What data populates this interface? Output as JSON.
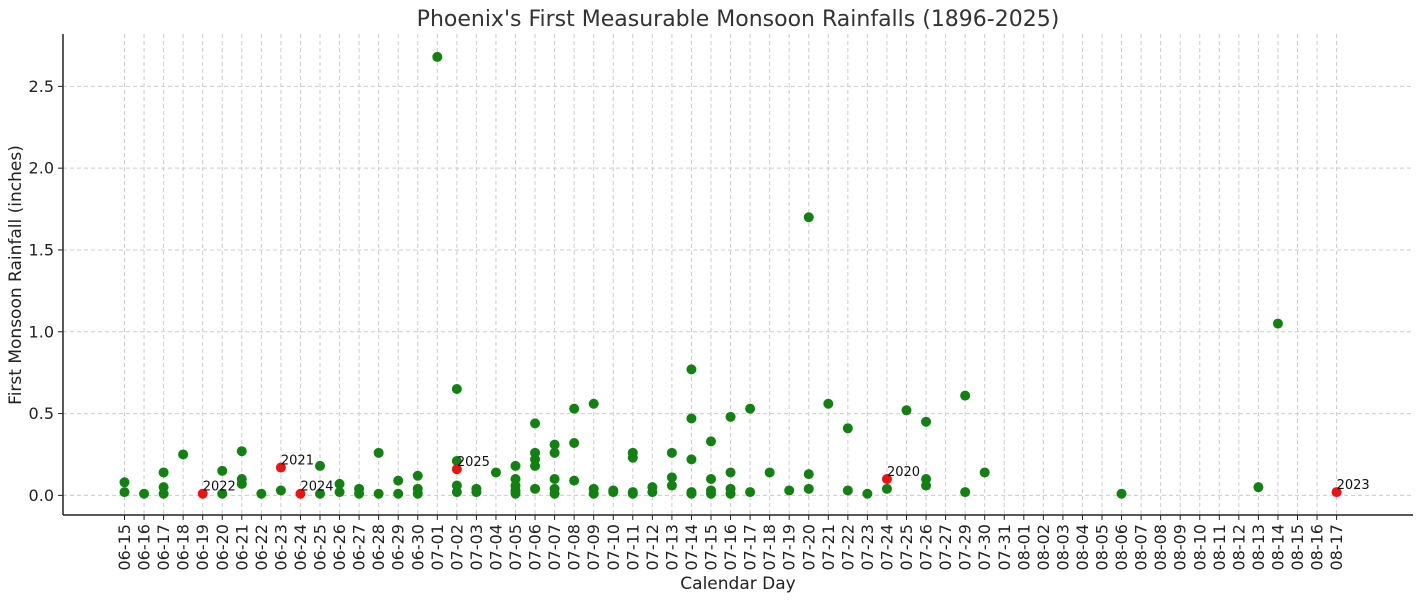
{
  "chart_data": {
    "type": "scatter",
    "title": "Phoenix's First Measurable Monsoon Rainfalls (1896-2025)",
    "xlabel": "Calendar Day",
    "ylabel": "First Monsoon Rainfall (inches)",
    "categories": [
      "06-15",
      "06-16",
      "06-17",
      "06-18",
      "06-19",
      "06-20",
      "06-21",
      "06-22",
      "06-23",
      "06-24",
      "06-25",
      "06-26",
      "06-27",
      "06-28",
      "06-29",
      "06-30",
      "07-01",
      "07-02",
      "07-03",
      "07-04",
      "07-05",
      "07-06",
      "07-07",
      "07-08",
      "07-09",
      "07-10",
      "07-11",
      "07-12",
      "07-13",
      "07-14",
      "07-15",
      "07-16",
      "07-17",
      "07-18",
      "07-19",
      "07-20",
      "07-21",
      "07-22",
      "07-23",
      "07-24",
      "07-25",
      "07-26",
      "07-27",
      "07-29",
      "07-30",
      "07-31",
      "08-01",
      "08-02",
      "08-03",
      "08-04",
      "08-05",
      "08-06",
      "08-07",
      "08-08",
      "08-09",
      "08-10",
      "08-11",
      "08-12",
      "08-13",
      "08-14",
      "08-15",
      "08-16",
      "08-17"
    ],
    "yticks": [
      "0.0",
      "0.5",
      "1.0",
      "1.5",
      "2.0",
      "2.5"
    ],
    "ylim": [
      -0.12,
      2.82
    ],
    "grid": true,
    "colors": {
      "points": "#118211",
      "highlight": "#ee1111",
      "grid": "#cccccc",
      "axis": "#222222"
    },
    "series": [
      {
        "points": [
          {
            "x": "06-15",
            "y": 0.08
          },
          {
            "x": "06-15",
            "y": 0.02
          },
          {
            "x": "06-16",
            "y": 0.01
          },
          {
            "x": "06-17",
            "y": 0.14
          },
          {
            "x": "06-17",
            "y": 0.05
          },
          {
            "x": "06-17",
            "y": 0.01
          },
          {
            "x": "06-18",
            "y": 0.25
          },
          {
            "x": "06-20",
            "y": 0.15
          },
          {
            "x": "06-20",
            "y": 0.01
          },
          {
            "x": "06-21",
            "y": 0.27
          },
          {
            "x": "06-21",
            "y": 0.1
          },
          {
            "x": "06-21",
            "y": 0.07
          },
          {
            "x": "06-22",
            "y": 0.01
          },
          {
            "x": "06-23",
            "y": 0.03
          },
          {
            "x": "06-25",
            "y": 0.18
          },
          {
            "x": "06-25",
            "y": 0.01
          },
          {
            "x": "06-26",
            "y": 0.07
          },
          {
            "x": "06-26",
            "y": 0.02
          },
          {
            "x": "06-27",
            "y": 0.04
          },
          {
            "x": "06-27",
            "y": 0.01
          },
          {
            "x": "06-28",
            "y": 0.26
          },
          {
            "x": "06-28",
            "y": 0.01
          },
          {
            "x": "06-29",
            "y": 0.09
          },
          {
            "x": "06-29",
            "y": 0.01
          },
          {
            "x": "06-30",
            "y": 0.12
          },
          {
            "x": "06-30",
            "y": 0.04
          },
          {
            "x": "06-30",
            "y": 0.01
          },
          {
            "x": "07-01",
            "y": 2.68
          },
          {
            "x": "07-02",
            "y": 0.65
          },
          {
            "x": "07-02",
            "y": 0.21
          },
          {
            "x": "07-02",
            "y": 0.06
          },
          {
            "x": "07-02",
            "y": 0.02
          },
          {
            "x": "07-03",
            "y": 0.04
          },
          {
            "x": "07-03",
            "y": 0.02
          },
          {
            "x": "07-04",
            "y": 0.14
          },
          {
            "x": "07-05",
            "y": 0.18
          },
          {
            "x": "07-05",
            "y": 0.1
          },
          {
            "x": "07-05",
            "y": 0.06
          },
          {
            "x": "07-05",
            "y": 0.03
          },
          {
            "x": "07-05",
            "y": 0.01
          },
          {
            "x": "07-06",
            "y": 0.44
          },
          {
            "x": "07-06",
            "y": 0.26
          },
          {
            "x": "07-06",
            "y": 0.22
          },
          {
            "x": "07-06",
            "y": 0.18
          },
          {
            "x": "07-06",
            "y": 0.04
          },
          {
            "x": "07-07",
            "y": 0.31
          },
          {
            "x": "07-07",
            "y": 0.26
          },
          {
            "x": "07-07",
            "y": 0.1
          },
          {
            "x": "07-07",
            "y": 0.04
          },
          {
            "x": "07-07",
            "y": 0.01
          },
          {
            "x": "07-08",
            "y": 0.53
          },
          {
            "x": "07-08",
            "y": 0.32
          },
          {
            "x": "07-08",
            "y": 0.09
          },
          {
            "x": "07-09",
            "y": 0.56
          },
          {
            "x": "07-09",
            "y": 0.04
          },
          {
            "x": "07-09",
            "y": 0.01
          },
          {
            "x": "07-10",
            "y": 0.03
          },
          {
            "x": "07-10",
            "y": 0.02
          },
          {
            "x": "07-11",
            "y": 0.26
          },
          {
            "x": "07-11",
            "y": 0.23
          },
          {
            "x": "07-11",
            "y": 0.02
          },
          {
            "x": "07-11",
            "y": 0.01
          },
          {
            "x": "07-12",
            "y": 0.05
          },
          {
            "x": "07-12",
            "y": 0.02
          },
          {
            "x": "07-13",
            "y": 0.26
          },
          {
            "x": "07-13",
            "y": 0.11
          },
          {
            "x": "07-13",
            "y": 0.06
          },
          {
            "x": "07-14",
            "y": 0.77
          },
          {
            "x": "07-14",
            "y": 0.47
          },
          {
            "x": "07-14",
            "y": 0.22
          },
          {
            "x": "07-14",
            "y": 0.02
          },
          {
            "x": "07-14",
            "y": 0.01
          },
          {
            "x": "07-15",
            "y": 0.33
          },
          {
            "x": "07-15",
            "y": 0.1
          },
          {
            "x": "07-15",
            "y": 0.03
          },
          {
            "x": "07-15",
            "y": 0.01
          },
          {
            "x": "07-16",
            "y": 0.48
          },
          {
            "x": "07-16",
            "y": 0.14
          },
          {
            "x": "07-16",
            "y": 0.04
          },
          {
            "x": "07-16",
            "y": 0.01
          },
          {
            "x": "07-17",
            "y": 0.53
          },
          {
            "x": "07-17",
            "y": 0.02
          },
          {
            "x": "07-18",
            "y": 0.14
          },
          {
            "x": "07-19",
            "y": 0.03
          },
          {
            "x": "07-20",
            "y": 1.7
          },
          {
            "x": "07-20",
            "y": 0.13
          },
          {
            "x": "07-20",
            "y": 0.04
          },
          {
            "x": "07-21",
            "y": 0.56
          },
          {
            "x": "07-22",
            "y": 0.41
          },
          {
            "x": "07-22",
            "y": 0.03
          },
          {
            "x": "07-23",
            "y": 0.01
          },
          {
            "x": "07-24",
            "y": 0.04
          },
          {
            "x": "07-25",
            "y": 0.52
          },
          {
            "x": "07-26",
            "y": 0.45
          },
          {
            "x": "07-26",
            "y": 0.1
          },
          {
            "x": "07-26",
            "y": 0.06
          },
          {
            "x": "07-29",
            "y": 0.61
          },
          {
            "x": "07-29",
            "y": 0.02
          },
          {
            "x": "07-30",
            "y": 0.14
          },
          {
            "x": "08-06",
            "y": 0.01
          },
          {
            "x": "08-13",
            "y": 0.05
          },
          {
            "x": "08-14",
            "y": 1.05
          }
        ]
      },
      {
        "points": [
          {
            "x": "06-19",
            "y": 0.01,
            "label": "2022"
          },
          {
            "x": "06-23",
            "y": 0.17,
            "label": "2021"
          },
          {
            "x": "06-24",
            "y": 0.01,
            "label": "2024"
          },
          {
            "x": "07-02",
            "y": 0.16,
            "label": "2025"
          },
          {
            "x": "07-24",
            "y": 0.1,
            "label": "2020"
          },
          {
            "x": "08-17",
            "y": 0.02,
            "label": "2023"
          }
        ]
      }
    ]
  }
}
